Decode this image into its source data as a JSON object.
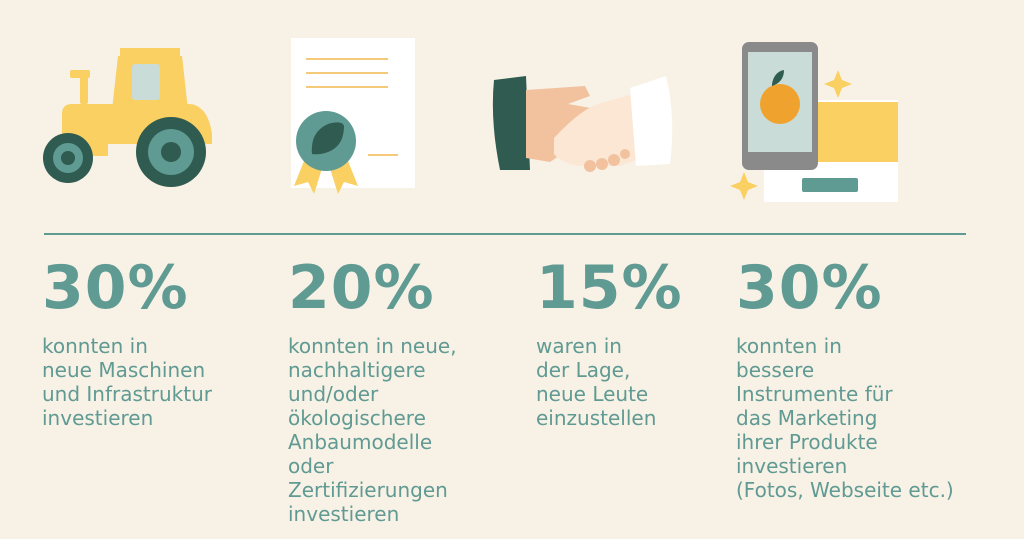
{
  "colors": {
    "background": "#f8f1e6",
    "teal": "#5f9a93",
    "dark_green": "#2f5b50",
    "yellow": "#f9d061",
    "orange": "#f0a22e"
  },
  "stats": [
    {
      "icon": "tractor-icon",
      "percent": "30%",
      "text": "konnten in\nneue Maschinen\nund Infrastruktur\ninvestieren"
    },
    {
      "icon": "certificate-icon",
      "percent": "20%",
      "text": "konnten in neue,\nnachhaltigere\nund/oder\nökologischere\nAnbaumodelle\noder\nZertifizierungen\ninvestieren"
    },
    {
      "icon": "handshake-icon",
      "percent": "15%",
      "text": "waren in\nder Lage,\nneue Leute\neinzustellen"
    },
    {
      "icon": "smartphone-marketing-icon",
      "percent": "30%",
      "text": "konnten in\nbessere\nInstrumente für\ndas Marketing\nihrer Produkte\ninvestieren\n(Fotos, Webseite etc.)"
    }
  ]
}
